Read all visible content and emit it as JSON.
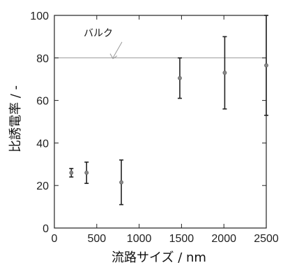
{
  "chart_data": {
    "type": "scatter",
    "title": "",
    "xlabel": "流路サイズ / nm",
    "ylabel": "比誘電率 / -",
    "xlim": [
      0,
      2500
    ],
    "ylim": [
      0,
      100
    ],
    "xticks": [
      0,
      500,
      1000,
      1500,
      2000,
      2500
    ],
    "yticks": [
      0,
      20,
      40,
      60,
      80,
      100
    ],
    "grid": false,
    "series": [
      {
        "points": [
          {
            "x": 200,
            "y": 26,
            "err_low": 24,
            "err_high": 28
          },
          {
            "x": 380,
            "y": 26,
            "err_low": 21,
            "err_high": 31
          },
          {
            "x": 790,
            "y": 21.5,
            "err_low": 11,
            "err_high": 32
          },
          {
            "x": 1480,
            "y": 70.5,
            "err_low": 61,
            "err_high": 80
          },
          {
            "x": 2010,
            "y": 73,
            "err_low": 56,
            "err_high": 90
          },
          {
            "x": 2500,
            "y": 76.5,
            "err_low": 53,
            "err_high": 100
          }
        ]
      }
    ],
    "reference_line": {
      "y": 80,
      "label": "バルク"
    },
    "colors": {
      "axis": "#222222",
      "errorbar": "#222222",
      "marker": "#888888",
      "reference": "#999999"
    }
  }
}
